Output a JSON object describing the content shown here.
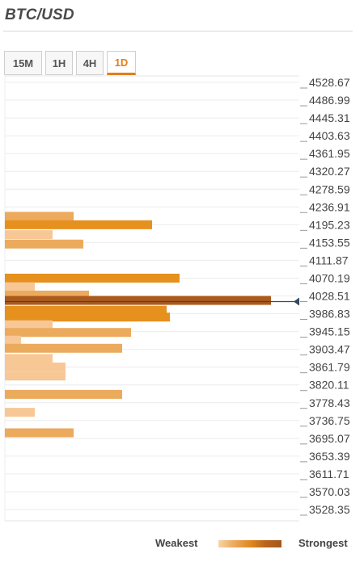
{
  "header": {
    "title": "BTC/USD"
  },
  "tabs": [
    {
      "label": "15M",
      "active": false
    },
    {
      "label": "1H",
      "active": false
    },
    {
      "label": "4H",
      "active": false
    },
    {
      "label": "1D",
      "active": true
    }
  ],
  "legend": {
    "weakest": "Weakest",
    "strongest": "Strongest"
  },
  "chart_data": {
    "type": "bar",
    "orientation": "horizontal",
    "price_levels": [
      "4528.67",
      "4486.99",
      "4445.31",
      "4403.63",
      "4361.95",
      "4320.27",
      "4278.59",
      "4236.91",
      "4195.23",
      "4153.55",
      "4111.87",
      "4070.19",
      "4028.51",
      "3986.83",
      "3945.15",
      "3903.47",
      "3861.79",
      "3820.11",
      "3778.43",
      "3736.75",
      "3695.07",
      "3653.39",
      "3611.71",
      "3570.03",
      "3528.35"
    ],
    "current_price": 4028.51,
    "colors": {
      "weak": "#f7c796",
      "medium": "#ecaa5d",
      "strong": "#e6901e",
      "strongest": "#ab5a1d",
      "marker": "#34495e"
    },
    "bars": [
      {
        "price": 4215.0,
        "value": 85,
        "strength": "medium"
      },
      {
        "price": 4195.2,
        "value": 182,
        "strength": "strong"
      },
      {
        "price": 4172.0,
        "value": 59,
        "strength": "weak"
      },
      {
        "price": 4150.0,
        "value": 97,
        "strength": "medium"
      },
      {
        "price": 4070.2,
        "value": 216,
        "strength": "strong"
      },
      {
        "price": 4050.0,
        "value": 37,
        "strength": "weak"
      },
      {
        "price": 4030.5,
        "value": 104,
        "strength": "medium"
      },
      {
        "price": 4018.0,
        "value": 329,
        "strength": "strongest"
      },
      {
        "price": 3995.0,
        "value": 200,
        "strength": "strong"
      },
      {
        "price": 3979.0,
        "value": 204,
        "strength": "strong"
      },
      {
        "price": 3961.0,
        "value": 59,
        "strength": "weak"
      },
      {
        "price": 3943.0,
        "value": 156,
        "strength": "medium"
      },
      {
        "price": 3925.0,
        "value": 20,
        "strength": "weak"
      },
      {
        "price": 3906.0,
        "value": 145,
        "strength": "medium"
      },
      {
        "price": 3882.0,
        "value": 59,
        "strength": "weak"
      },
      {
        "price": 3862.0,
        "value": 75,
        "strength": "weak"
      },
      {
        "price": 3841.0,
        "value": 75,
        "strength": "weak"
      },
      {
        "price": 3798.0,
        "value": 145,
        "strength": "medium"
      },
      {
        "price": 3756.0,
        "value": 37,
        "strength": "weak"
      },
      {
        "price": 3708.0,
        "value": 85,
        "strength": "medium"
      }
    ]
  }
}
